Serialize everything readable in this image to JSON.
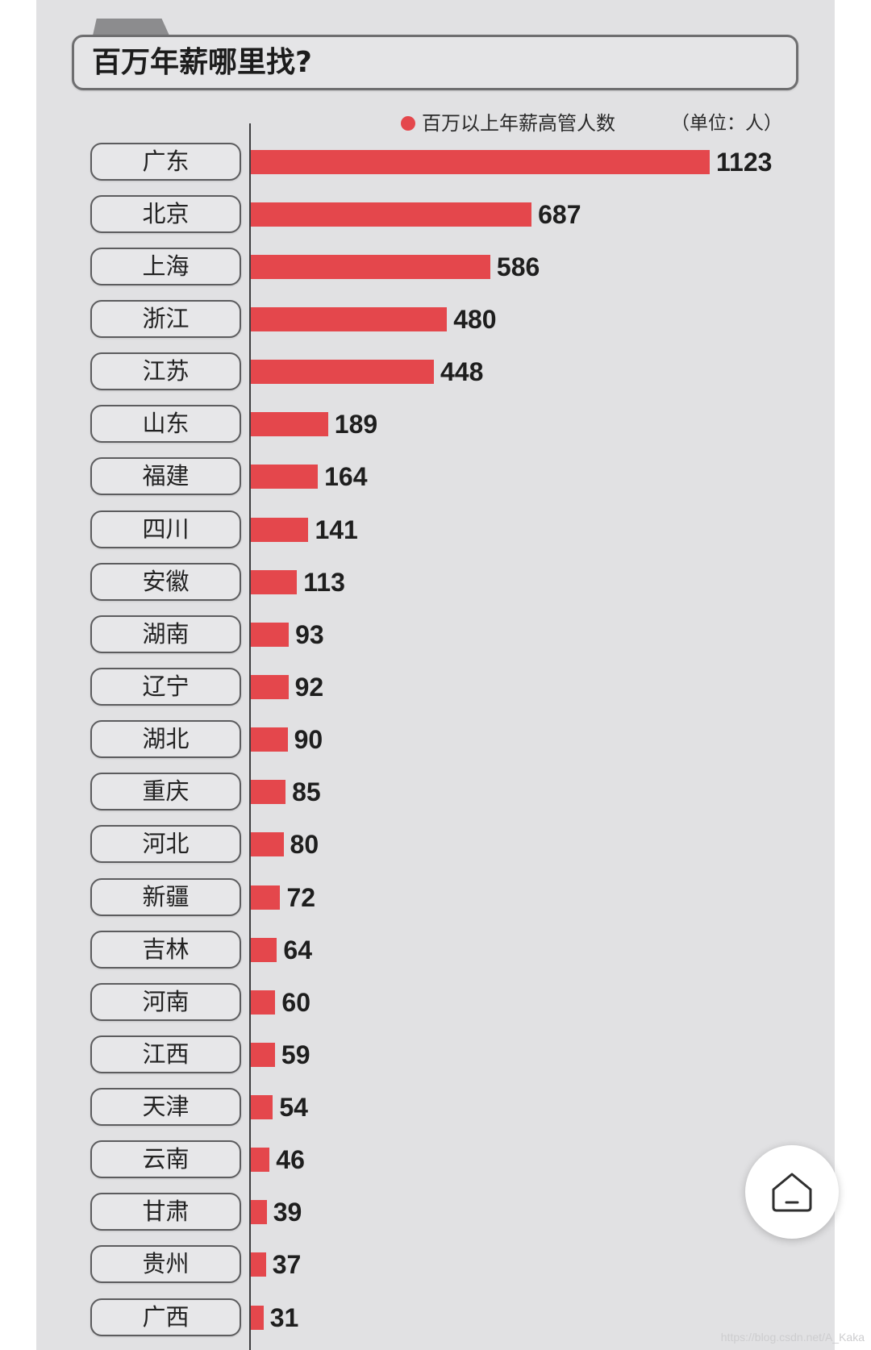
{
  "chart_data": {
    "type": "bar",
    "orientation": "horizontal",
    "title": "百万年薪哪里找?",
    "unit": "（单位：人）",
    "categories": [
      "广东",
      "北京",
      "上海",
      "浙江",
      "江苏",
      "山东",
      "福建",
      "四川",
      "安徽",
      "湖南",
      "辽宁",
      "湖北",
      "重庆",
      "河北",
      "新疆",
      "吉林",
      "河南",
      "江西",
      "天津",
      "云南",
      "甘肃",
      "贵州",
      "广西"
    ],
    "series": [
      {
        "name": "百万以上年薪高管人数",
        "values": [
          1123,
          687,
          586,
          480,
          448,
          189,
          164,
          141,
          113,
          93,
          92,
          90,
          85,
          80,
          72,
          64,
          60,
          59,
          54,
          46,
          39,
          37,
          31
        ]
      }
    ],
    "data_labels": true,
    "legend": "top-right",
    "grid": false
  },
  "home_button": {
    "icon": "home-icon"
  },
  "watermark": "https://blog.csdn.net/A_Kaka",
  "colors": {
    "bar": "#e4474c",
    "legend_dot": "#e4474c",
    "panel": "#e1e1e3",
    "text": "#1e1e1e"
  }
}
